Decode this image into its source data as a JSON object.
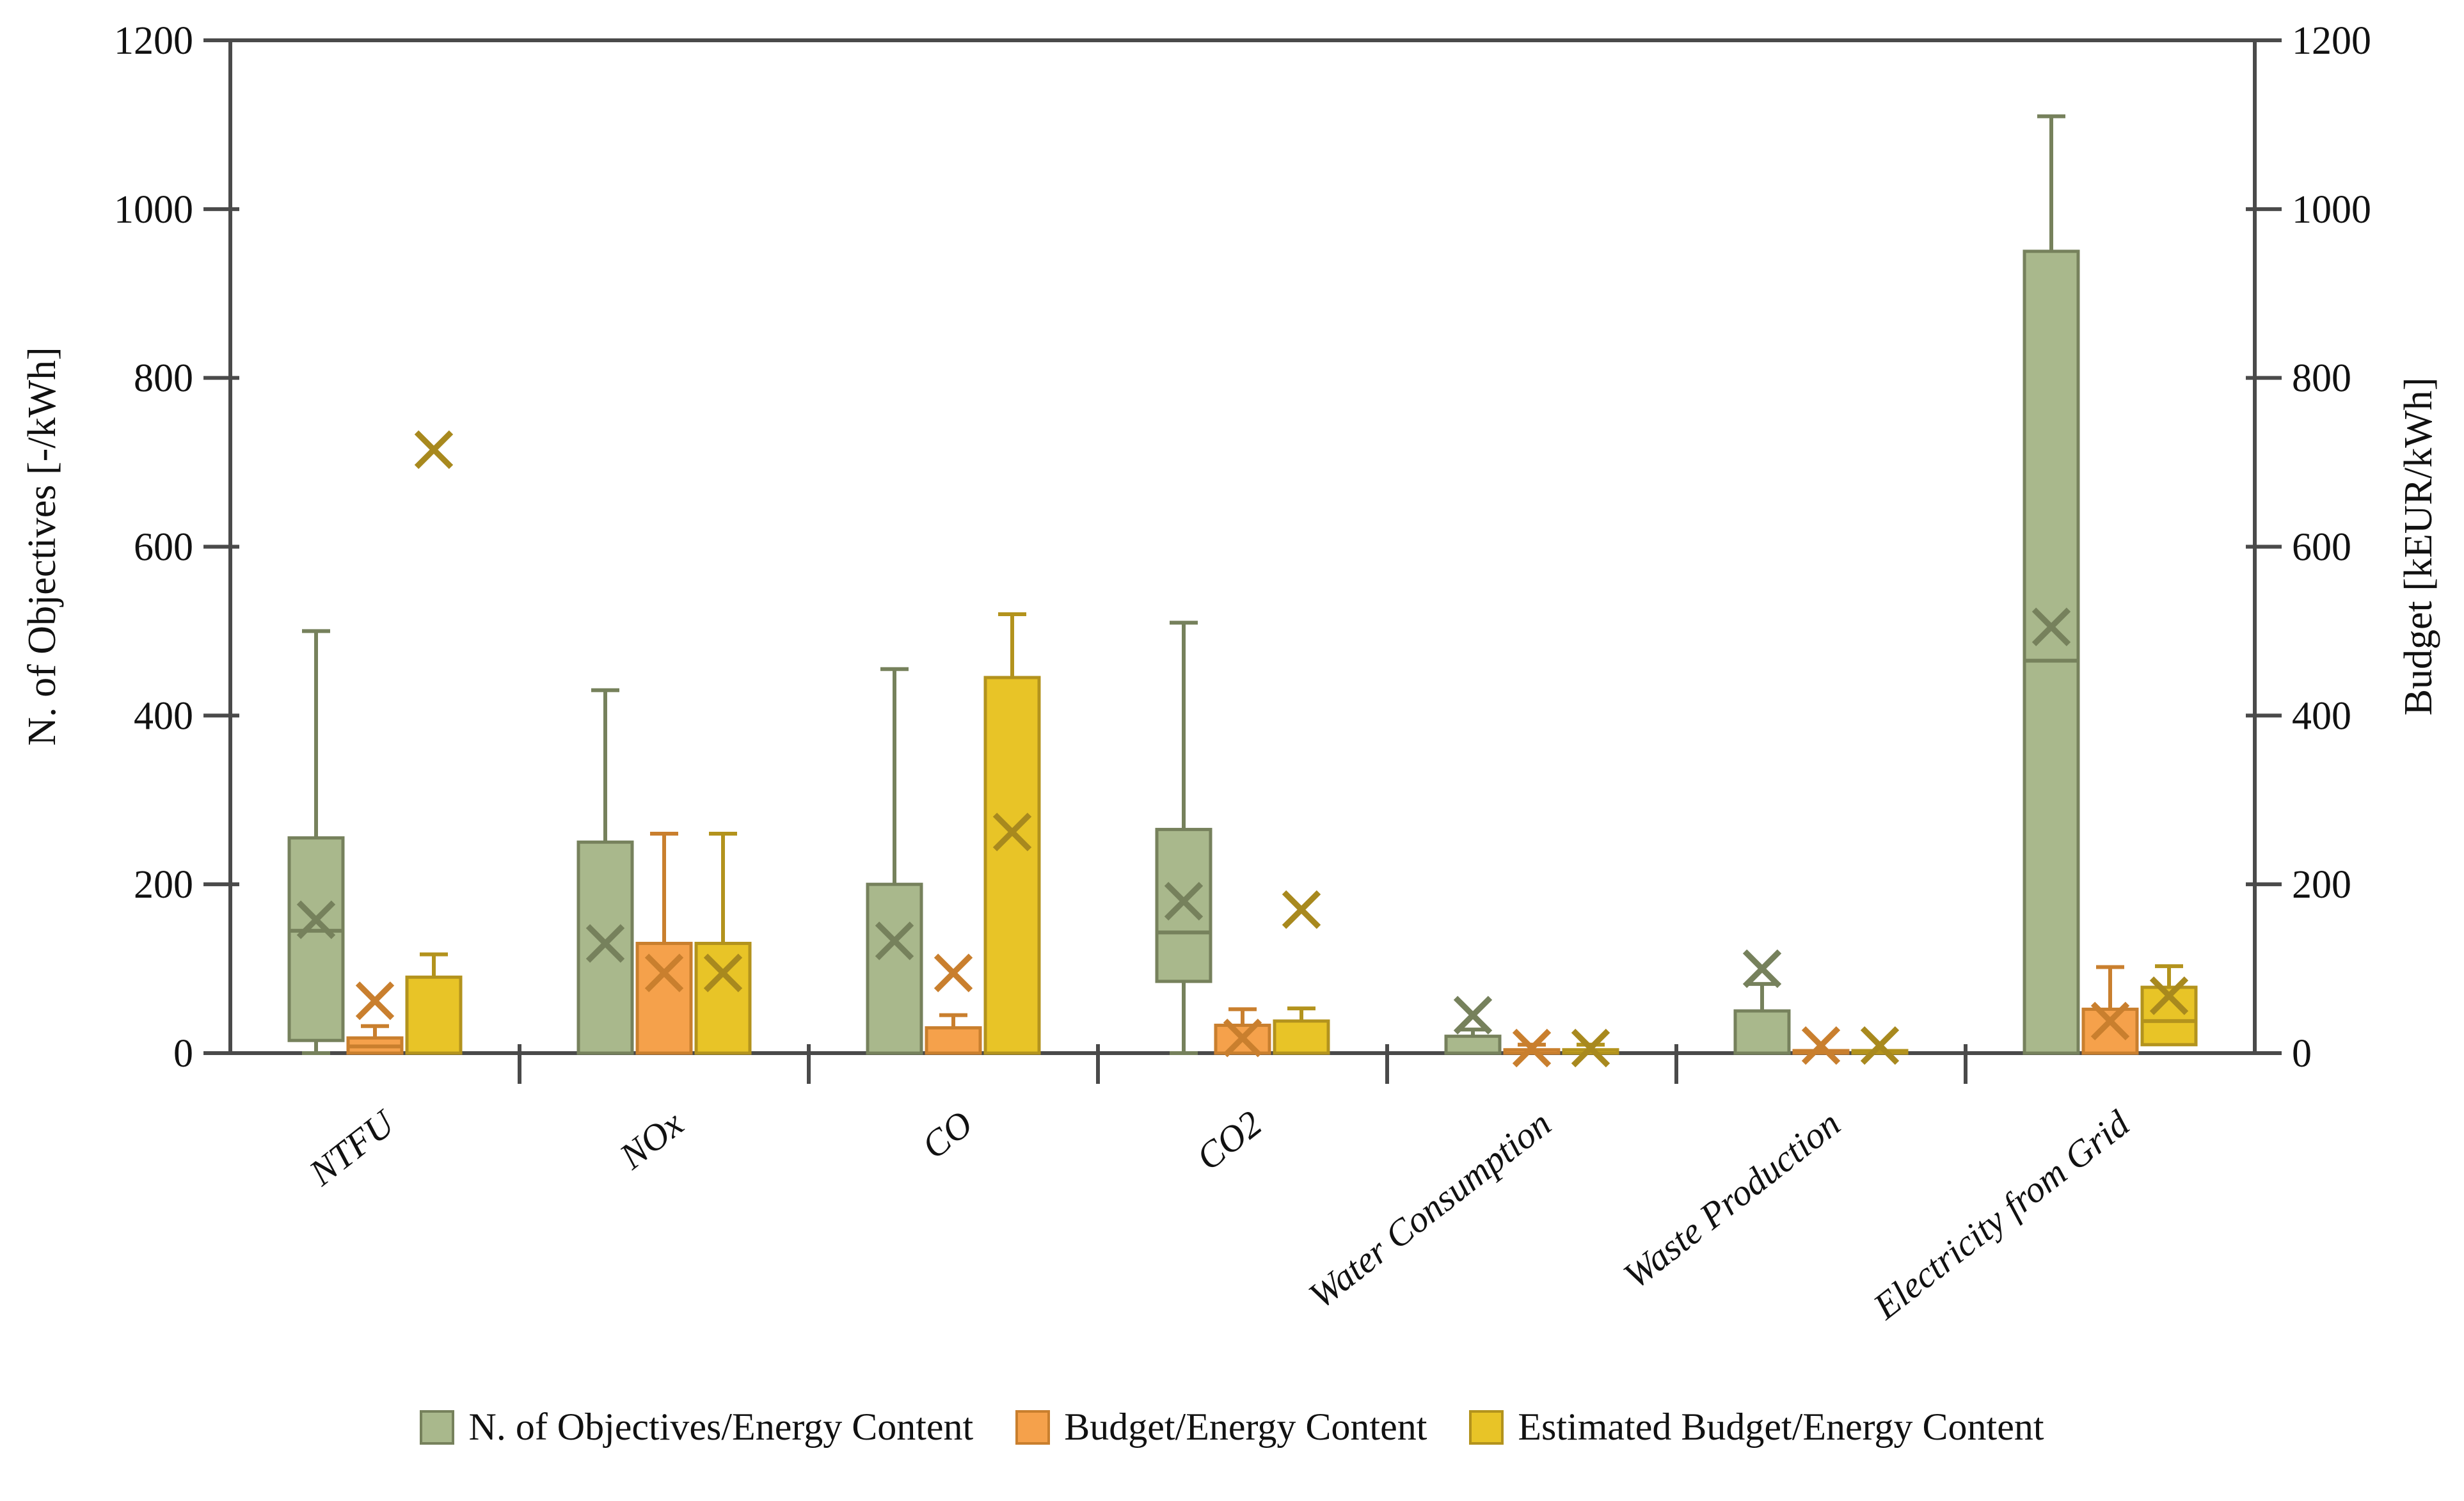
{
  "chart_data": {
    "type": "boxplot",
    "title": "",
    "categories": [
      "NTFU",
      "NOx",
      "CO",
      "CO2",
      "Water Consumption",
      "Waste Production",
      "Electricity from Grid"
    ],
    "y_axis_left": {
      "label": "N. of Objectives [-/kWh]",
      "min": 0,
      "max": 1200,
      "tick_step": 200,
      "ticks": [
        0,
        200,
        400,
        600,
        800,
        1000,
        1200
      ]
    },
    "y_axis_right": {
      "label": "Budget [kEUR/kWh]",
      "min": 0,
      "max": 1200,
      "tick_step": 200,
      "ticks": [
        0,
        200,
        400,
        600,
        800,
        1000,
        1200
      ]
    },
    "grid": false,
    "legend_position": "bottom",
    "marker_shape": "x",
    "axis_color": "#4a4a4a",
    "series": [
      {
        "name": "N. of Objectives/Energy Content",
        "fill": "#a9b88c",
        "stroke": "#76815c",
        "marker": "#76815c",
        "boxes": [
          {
            "category": "NTFU",
            "q1": 15,
            "q3": 255,
            "median": 145,
            "mean": 158,
            "whisker_low": 0,
            "whisker_high": 500
          },
          {
            "category": "NOx",
            "q1": 0,
            "q3": 250,
            "median": null,
            "mean": 130,
            "whisker_low": null,
            "whisker_high": 430
          },
          {
            "category": "CO",
            "q1": 0,
            "q3": 200,
            "median": null,
            "mean": 133,
            "whisker_low": null,
            "whisker_high": 455
          },
          {
            "category": "CO2",
            "q1": 85,
            "q3": 265,
            "median": 143,
            "mean": 180,
            "whisker_low": 0,
            "whisker_high": 510
          },
          {
            "category": "Water Consumption",
            "q1": 0,
            "q3": 20,
            "median": null,
            "mean": 45,
            "whisker_low": null,
            "whisker_high": 28
          },
          {
            "category": "Waste Production",
            "q1": 0,
            "q3": 50,
            "median": null,
            "mean": 100,
            "whisker_low": null,
            "whisker_high": 82
          },
          {
            "category": "Electricity from Grid",
            "q1": 0,
            "q3": 950,
            "median": 465,
            "mean": 505,
            "whisker_low": null,
            "whisker_high": 1110
          }
        ]
      },
      {
        "name": "Budget/Energy Content",
        "fill": "#f5a14b",
        "stroke": "#c97f2e",
        "marker": "#c97f2e",
        "boxes": [
          {
            "category": "NTFU",
            "q1": 0,
            "q3": 18,
            "median": 8,
            "mean": 62,
            "whisker_low": null,
            "whisker_high": 32
          },
          {
            "category": "NOx",
            "q1": 0,
            "q3": 130,
            "median": null,
            "mean": 95,
            "whisker_low": null,
            "whisker_high": 260
          },
          {
            "category": "CO",
            "q1": 0,
            "q3": 30,
            "median": null,
            "mean": 95,
            "whisker_low": null,
            "whisker_high": 45
          },
          {
            "category": "CO2",
            "q1": 0,
            "q3": 33,
            "median": null,
            "mean": 18,
            "whisker_low": null,
            "whisker_high": 52
          },
          {
            "category": "Water Consumption",
            "q1": 0,
            "q3": 4,
            "median": null,
            "mean": 6,
            "whisker_low": null,
            "whisker_high": 10
          },
          {
            "category": "Waste Production",
            "q1": 0,
            "q3": 3,
            "median": null,
            "mean": 9,
            "whisker_low": null,
            "whisker_high": null
          },
          {
            "category": "Electricity from Grid",
            "q1": 0,
            "q3": 52,
            "median": null,
            "mean": 38,
            "whisker_low": null,
            "whisker_high": 102
          }
        ]
      },
      {
        "name": "Estimated Budget/Energy Content",
        "fill": "#e8c427",
        "stroke": "#b3931d",
        "marker": "#a8891e",
        "boxes": [
          {
            "category": "NTFU",
            "q1": 0,
            "q3": 90,
            "median": null,
            "mean": 715,
            "whisker_low": null,
            "whisker_high": 117
          },
          {
            "category": "NOx",
            "q1": 0,
            "q3": 130,
            "median": null,
            "mean": 95,
            "whisker_low": null,
            "whisker_high": 260
          },
          {
            "category": "CO",
            "q1": 0,
            "q3": 445,
            "median": null,
            "mean": 262,
            "whisker_low": null,
            "whisker_high": 520
          },
          {
            "category": "CO2",
            "q1": 0,
            "q3": 38,
            "median": null,
            "mean": 170,
            "whisker_low": null,
            "whisker_high": 53
          },
          {
            "category": "Water Consumption",
            "q1": 0,
            "q3": 4,
            "median": null,
            "mean": 6,
            "whisker_low": null,
            "whisker_high": 10
          },
          {
            "category": "Waste Production",
            "q1": 0,
            "q3": 3,
            "median": null,
            "mean": 9,
            "whisker_low": null,
            "whisker_high": null
          },
          {
            "category": "Electricity from Grid",
            "q1": 10,
            "q3": 78,
            "median": 38,
            "mean": 68,
            "whisker_low": null,
            "whisker_high": 103
          }
        ]
      }
    ]
  }
}
